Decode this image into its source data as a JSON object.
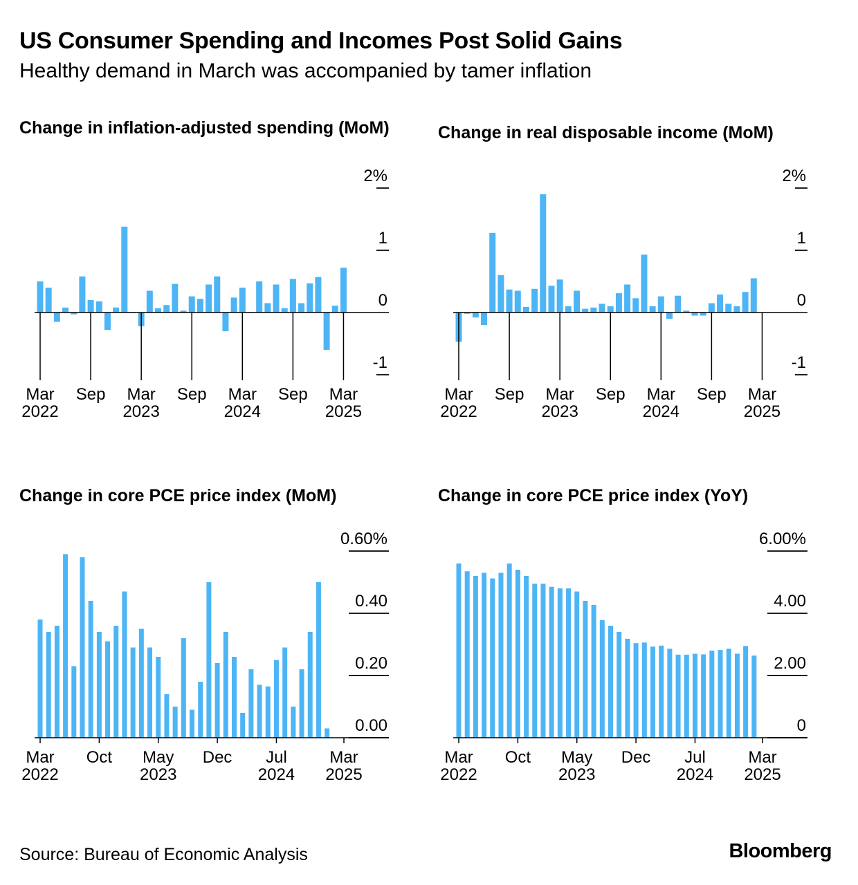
{
  "header": {
    "title": "US Consumer Spending and Incomes Post Solid Gains",
    "subtitle": "Healthy demand in March was accompanied by tamer inflation"
  },
  "footer": {
    "source": "Source: Bureau of Economic Analysis",
    "logo": "Bloomberg"
  },
  "colors": {
    "bar": "#4db5f5",
    "axis": "#000000"
  },
  "chart_data": [
    {
      "type": "bar",
      "title": "Change in inflation-adjusted spending (MoM)",
      "ylim": [
        -1,
        2
      ],
      "yticks": [
        {
          "v": 2,
          "label": "2%"
        },
        {
          "v": 1,
          "label": "1"
        },
        {
          "v": 0,
          "label": "0"
        },
        {
          "v": -1,
          "label": "-1"
        }
      ],
      "x_start": "2022-03",
      "x_end": "2025-06",
      "xticks": [
        {
          "month": "2022-03",
          "label1": "Mar",
          "label2": "2022"
        },
        {
          "month": "2022-09",
          "label1": "Sep",
          "label2": ""
        },
        {
          "month": "2023-03",
          "label1": "Mar",
          "label2": "2023"
        },
        {
          "month": "2023-09",
          "label1": "Sep",
          "label2": ""
        },
        {
          "month": "2024-03",
          "label1": "Mar",
          "label2": "2024"
        },
        {
          "month": "2024-09",
          "label1": "Sep",
          "label2": ""
        },
        {
          "month": "2025-03",
          "label1": "Mar",
          "label2": "2025"
        }
      ],
      "grid": false,
      "values": [
        0.5,
        0.4,
        -0.15,
        0.08,
        -0.03,
        0.58,
        0.2,
        0.18,
        -0.28,
        0.08,
        1.38,
        -0.01,
        -0.22,
        0.35,
        0.07,
        0.12,
        0.46,
        0.03,
        0.26,
        0.22,
        0.45,
        0.58,
        -0.3,
        0.24,
        0.4,
        0.0,
        0.5,
        0.15,
        0.45,
        0.07,
        0.54,
        0.15,
        0.47,
        0.57,
        -0.6,
        0.11,
        0.72
      ]
    },
    {
      "type": "bar",
      "title": "Change in real disposable income (MoM)",
      "ylim": [
        -1,
        2
      ],
      "yticks": [
        {
          "v": 2,
          "label": "2%"
        },
        {
          "v": 1,
          "label": "1"
        },
        {
          "v": 0,
          "label": "0"
        },
        {
          "v": -1,
          "label": "-1"
        }
      ],
      "x_start": "2022-03",
      "x_end": "2025-06",
      "xticks": [
        {
          "month": "2022-03",
          "label1": "Mar",
          "label2": "2022"
        },
        {
          "month": "2022-09",
          "label1": "Sep",
          "label2": ""
        },
        {
          "month": "2023-03",
          "label1": "Mar",
          "label2": "2023"
        },
        {
          "month": "2023-09",
          "label1": "Sep",
          "label2": ""
        },
        {
          "month": "2024-03",
          "label1": "Mar",
          "label2": "2024"
        },
        {
          "month": "2024-09",
          "label1": "Sep",
          "label2": ""
        },
        {
          "month": "2025-03",
          "label1": "Mar",
          "label2": "2025"
        }
      ],
      "grid": false,
      "values": [
        -0.47,
        -0.02,
        -0.08,
        -0.2,
        1.28,
        0.6,
        0.37,
        0.35,
        0.09,
        0.38,
        1.9,
        0.43,
        0.53,
        0.1,
        0.35,
        0.06,
        0.08,
        0.14,
        0.1,
        0.31,
        0.45,
        0.23,
        0.93,
        0.1,
        0.26,
        -0.1,
        0.27,
        0.03,
        -0.05,
        -0.05,
        0.15,
        0.29,
        0.14,
        0.1,
        0.33,
        0.55
      ]
    },
    {
      "type": "bar",
      "title": "Change in core PCE price index (MoM)",
      "ylim": [
        0,
        0.6
      ],
      "yticks": [
        {
          "v": 0.6,
          "label": "0.60%"
        },
        {
          "v": 0.4,
          "label": "0.40"
        },
        {
          "v": 0.2,
          "label": "0.20"
        },
        {
          "v": 0.0,
          "label": "0.00"
        }
      ],
      "x_start": "2022-03",
      "x_end": "2025-08",
      "xticks": [
        {
          "month": "2022-03",
          "label1": "Mar",
          "label2": "2022"
        },
        {
          "month": "2022-10",
          "label1": "Oct",
          "label2": ""
        },
        {
          "month": "2023-05",
          "label1": "May",
          "label2": "2023"
        },
        {
          "month": "2023-12",
          "label1": "Dec",
          "label2": ""
        },
        {
          "month": "2024-07",
          "label1": "Jul",
          "label2": "2024"
        },
        {
          "month": "2025-03",
          "label1": "Mar",
          "label2": "2025"
        }
      ],
      "grid": false,
      "values": [
        0.38,
        0.34,
        0.36,
        0.59,
        0.23,
        0.58,
        0.44,
        0.34,
        0.31,
        0.36,
        0.47,
        0.29,
        0.35,
        0.29,
        0.26,
        0.14,
        0.1,
        0.32,
        0.09,
        0.18,
        0.5,
        0.24,
        0.34,
        0.26,
        0.08,
        0.22,
        0.17,
        0.165,
        0.25,
        0.29,
        0.1,
        0.22,
        0.34,
        0.5,
        0.03
      ]
    },
    {
      "type": "bar",
      "title": "Change in core PCE price index (YoY)",
      "ylim": [
        0,
        6
      ],
      "yticks": [
        {
          "v": 6,
          "label": "6.00%"
        },
        {
          "v": 4,
          "label": "4.00"
        },
        {
          "v": 2,
          "label": "2.00"
        },
        {
          "v": 0,
          "label": "0"
        }
      ],
      "x_start": "2022-03",
      "x_end": "2025-08",
      "xticks": [
        {
          "month": "2022-03",
          "label1": "Mar",
          "label2": "2022"
        },
        {
          "month": "2022-10",
          "label1": "Oct",
          "label2": ""
        },
        {
          "month": "2023-05",
          "label1": "May",
          "label2": "2023"
        },
        {
          "month": "2023-12",
          "label1": "Dec",
          "label2": ""
        },
        {
          "month": "2024-07",
          "label1": "Jul",
          "label2": "2024"
        },
        {
          "month": "2025-03",
          "label1": "Mar",
          "label2": "2025"
        }
      ],
      "grid": false,
      "values": [
        5.6,
        5.35,
        5.2,
        5.3,
        5.12,
        5.3,
        5.6,
        5.4,
        5.2,
        4.95,
        4.95,
        4.85,
        4.8,
        4.8,
        4.7,
        4.4,
        4.27,
        3.78,
        3.6,
        3.4,
        3.18,
        3.04,
        3.06,
        2.93,
        2.96,
        2.86,
        2.67,
        2.67,
        2.7,
        2.68,
        2.8,
        2.82,
        2.86,
        2.7,
        2.95,
        2.64
      ]
    }
  ]
}
